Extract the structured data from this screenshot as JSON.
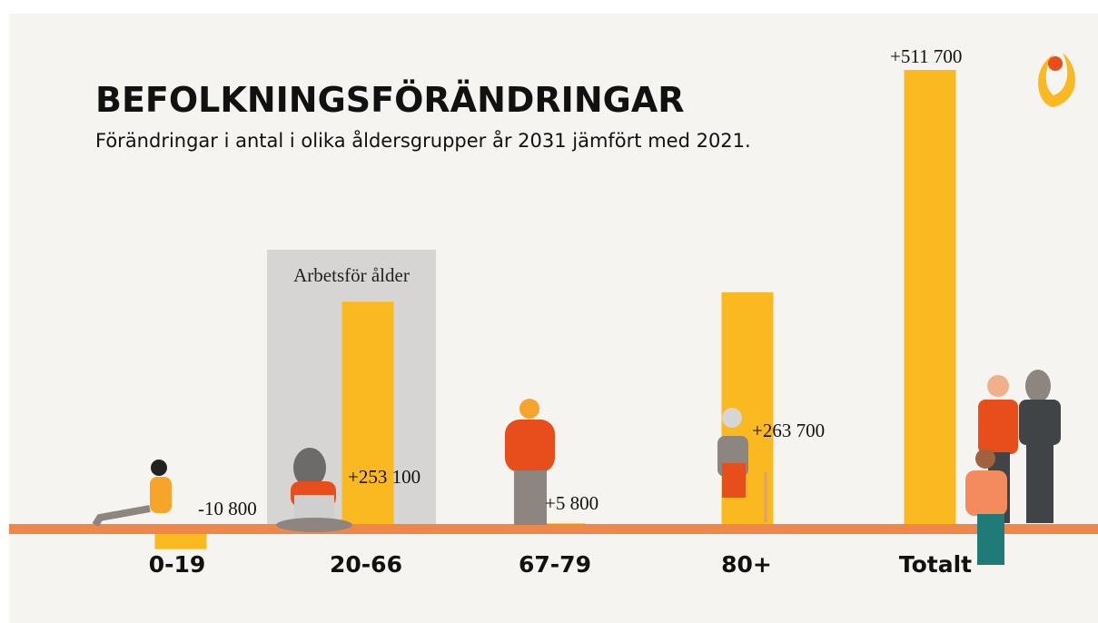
{
  "chart_data": {
    "type": "bar",
    "title": "BEFOLKNINGSFÖRÄNDRINGAR",
    "subtitle": "Förändringar i antal i olika åldersgrupper år 2031 jämfört med 2021.",
    "annotation": "Arbetsför ålder",
    "categories": [
      "0-19",
      "20-66",
      "67-79",
      "80+",
      "Totalt"
    ],
    "values": [
      -10800,
      253100,
      5800,
      263700,
      511700
    ],
    "value_labels": [
      "-10 800",
      "+253 100",
      "+5 800",
      "+263 700",
      "+511 700"
    ],
    "color": "#fbb921"
  }
}
